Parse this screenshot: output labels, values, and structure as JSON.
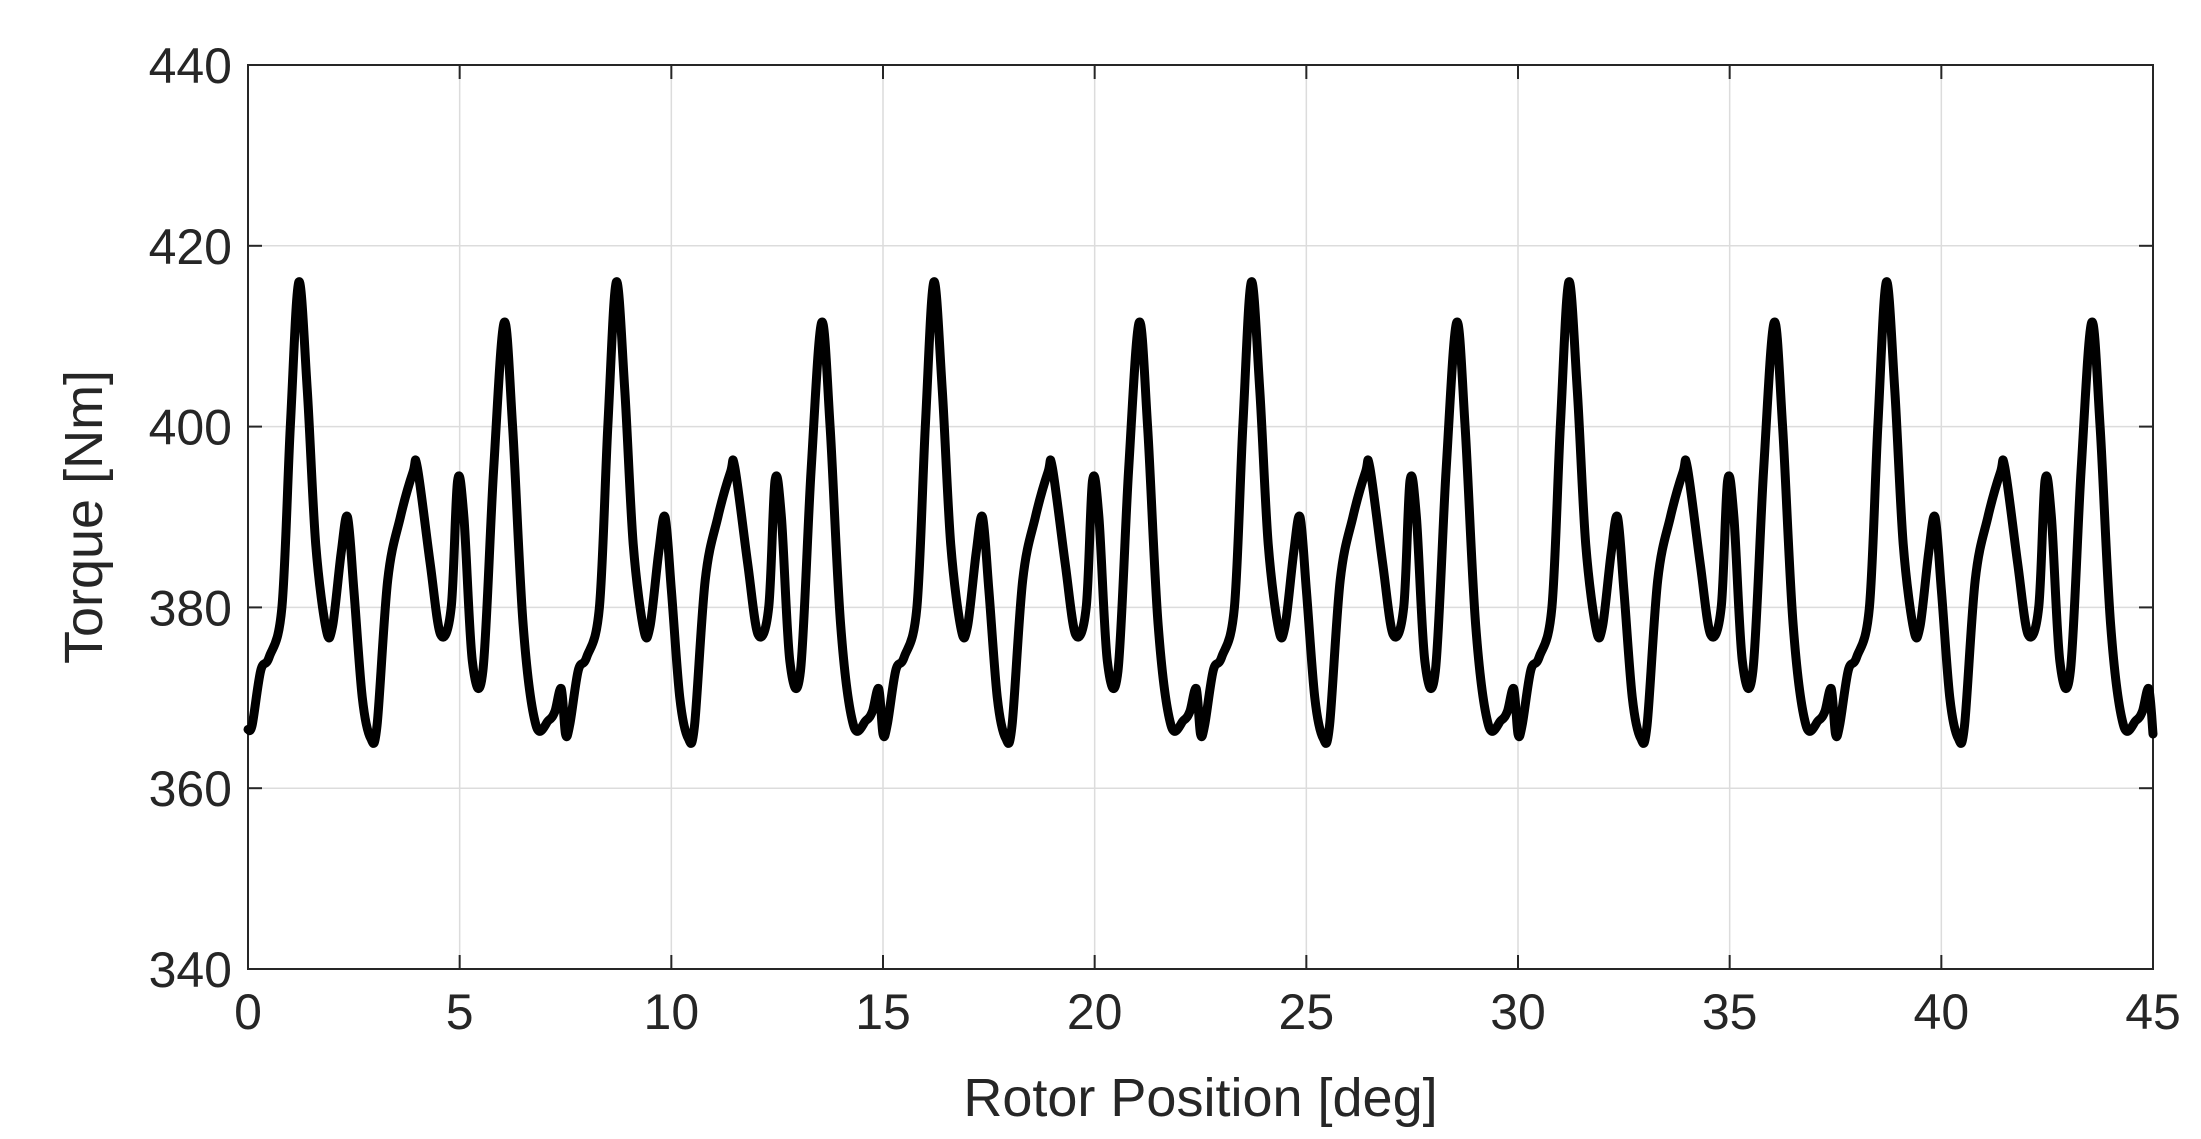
{
  "chart_data": {
    "type": "line",
    "title": "",
    "xlabel": "Rotor Position [deg]",
    "ylabel": "Torque [Nm]",
    "xlim": [
      0,
      45
    ],
    "ylim": [
      340,
      440
    ],
    "xticks": [
      0,
      5,
      10,
      15,
      20,
      25,
      30,
      35,
      40,
      45
    ],
    "yticks": [
      340,
      360,
      380,
      400,
      420,
      440
    ],
    "xtick_labels": [
      "0",
      "5",
      "10",
      "15",
      "20",
      "25",
      "30",
      "35",
      "40",
      "45"
    ],
    "ytick_labels": [
      "340",
      "360",
      "380",
      "400",
      "420",
      "440"
    ],
    "grid": true,
    "line_color": "#000000",
    "series_period_deg": 7.5,
    "series": [
      {
        "x": [
          0.0,
          0.1,
          0.3,
          0.5,
          0.8,
          1.0,
          1.2,
          1.4,
          1.6,
          1.85,
          2.0,
          2.2,
          2.35,
          2.5,
          2.7,
          2.9,
          3.05,
          3.3,
          3.6,
          3.9,
          4.0,
          4.3,
          4.55,
          4.8,
          4.95,
          5.1,
          5.3,
          5.55,
          5.8,
          6.05,
          6.25,
          6.5,
          6.8,
          7.1,
          7.25,
          7.4,
          7.5
        ],
        "y": [
          366.5,
          367.0,
          373.0,
          374.5,
          380.0,
          400.0,
          416.0,
          404.0,
          387.0,
          377.5,
          378.0,
          386.0,
          390.0,
          382.0,
          370.0,
          365.5,
          367.0,
          383.0,
          390.0,
          395.0,
          395.5,
          385.0,
          377.0,
          380.0,
          394.0,
          390.0,
          374.0,
          373.0,
          395.0,
          411.5,
          400.0,
          378.0,
          367.0,
          367.5,
          368.5,
          371.0,
          366.0
        ]
      }
    ]
  }
}
